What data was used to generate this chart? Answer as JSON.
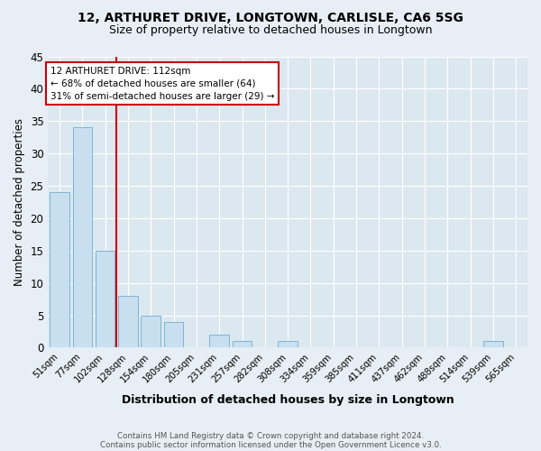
{
  "title1": "12, ARTHURET DRIVE, LONGTOWN, CARLISLE, CA6 5SG",
  "title2": "Size of property relative to detached houses in Longtown",
  "xlabel": "Distribution of detached houses by size in Longtown",
  "ylabel": "Number of detached properties",
  "categories": [
    "51sqm",
    "77sqm",
    "102sqm",
    "128sqm",
    "154sqm",
    "180sqm",
    "205sqm",
    "231sqm",
    "257sqm",
    "282sqm",
    "308sqm",
    "334sqm",
    "359sqm",
    "385sqm",
    "411sqm",
    "437sqm",
    "462sqm",
    "488sqm",
    "514sqm",
    "539sqm",
    "565sqm"
  ],
  "values": [
    24,
    34,
    15,
    8,
    5,
    4,
    0,
    2,
    1,
    0,
    1,
    0,
    0,
    0,
    0,
    0,
    0,
    0,
    0,
    1,
    0
  ],
  "bar_color": "#c8dff0",
  "bar_edgecolor": "#7fb3d3",
  "vline_color": "#cc0000",
  "annotation_line1": "12 ARTHURET DRIVE: 112sqm",
  "annotation_line2": "← 68% of detached houses are smaller (64)",
  "annotation_line3": "31% of semi-detached houses are larger (29) →",
  "ylim": [
    0,
    45
  ],
  "yticks": [
    0,
    5,
    10,
    15,
    20,
    25,
    30,
    35,
    40,
    45
  ],
  "footnote1": "Contains HM Land Registry data © Crown copyright and database right 2024.",
  "footnote2": "Contains public sector information licensed under the Open Government Licence v3.0.",
  "bg_color": "#e8eef5",
  "plot_bg": "#dce8f0"
}
